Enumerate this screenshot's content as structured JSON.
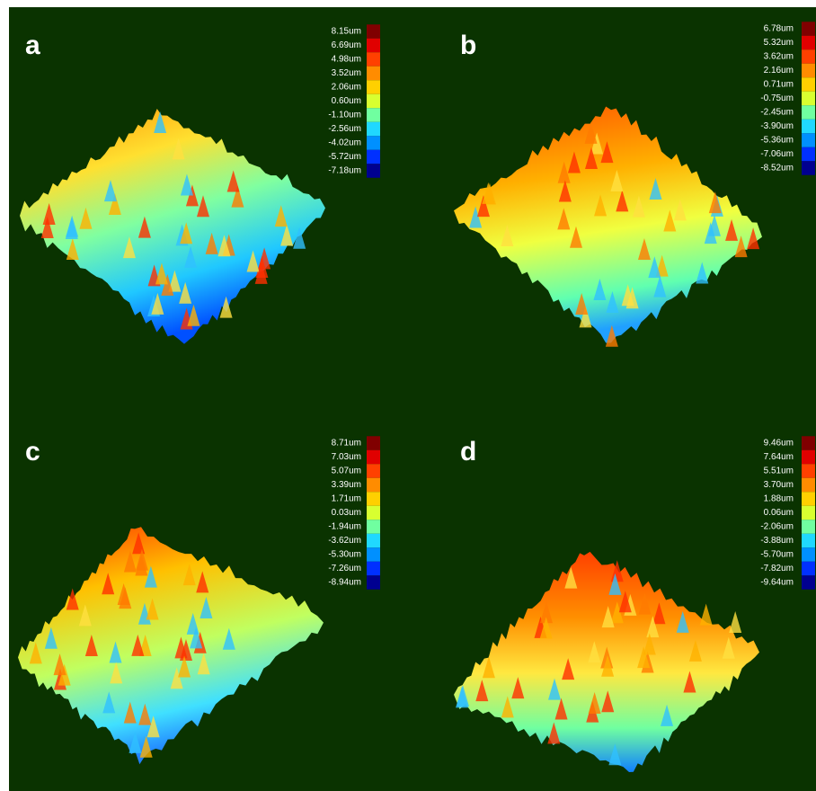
{
  "panels": [
    {
      "label": "a",
      "scale": [
        "8.15um",
        "6.69um",
        "4.98um",
        "3.52um",
        "2.06um",
        "0.60um",
        "-1.10um",
        "-2.56um",
        "-4.02um",
        "-5.72um",
        "-7.18um"
      ]
    },
    {
      "label": "b",
      "scale": [
        "6.78um",
        "5.32um",
        "3.62um",
        "2.16um",
        "0.71um",
        "-0.75um",
        "-2.45um",
        "-3.90um",
        "-5.36um",
        "-7.06um",
        "-8.52um"
      ]
    },
    {
      "label": "c",
      "scale": [
        "8.71um",
        "7.03um",
        "5.07um",
        "3.39um",
        "1.71um",
        "0.03um",
        "-1.94um",
        "-3.62um",
        "-5.30um",
        "-7.26um",
        "-8.94um"
      ]
    },
    {
      "label": "d",
      "scale": [
        "9.46um",
        "7.64um",
        "5.51um",
        "3.70um",
        "1.88um",
        "0.06um",
        "-2.06um",
        "-3.88um",
        "-5.70um",
        "-7.82um",
        "-9.64um"
      ]
    }
  ]
}
